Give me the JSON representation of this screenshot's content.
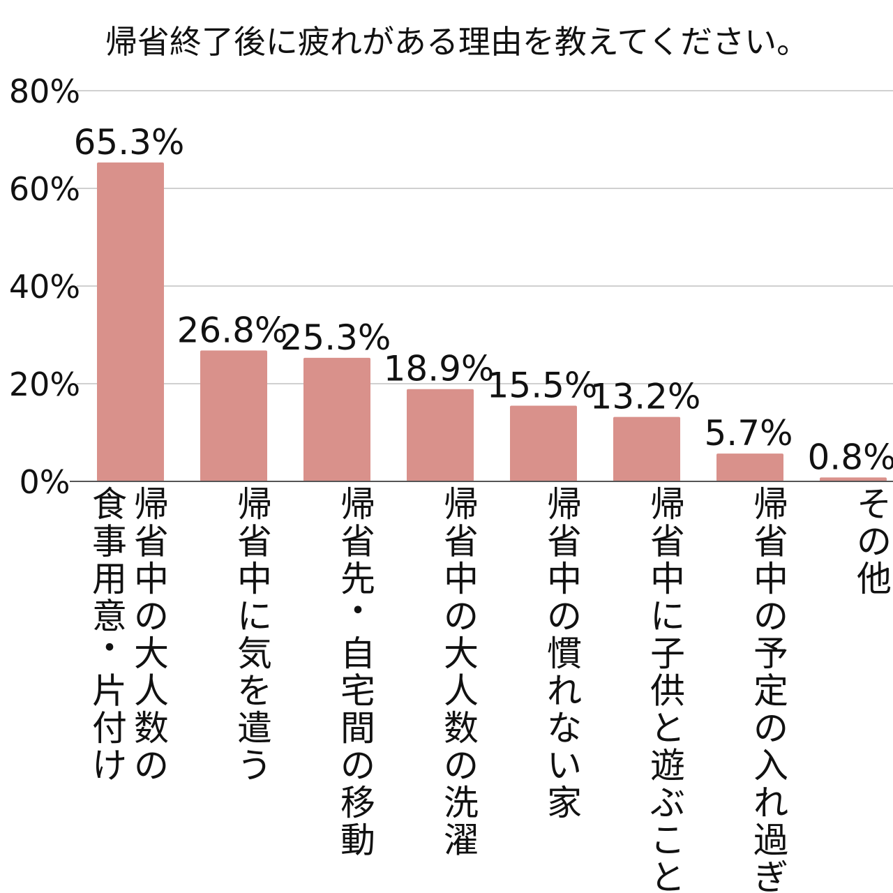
{
  "chart_data": {
    "type": "bar",
    "title": "帰省終了後に疲れがある理由を教えてください。",
    "xlabel": "",
    "ylabel": "",
    "ylim": [
      0,
      80
    ],
    "yticks": [
      "0%",
      "20%",
      "40%",
      "60%",
      "80%"
    ],
    "grid": true,
    "legend": "none",
    "bar_color": "#D9918B",
    "categories": [
      {
        "lines": [
          "帰省中の大人数の",
          "食事用意・片付け"
        ]
      },
      {
        "lines": [
          "帰省中に気を遣う"
        ]
      },
      {
        "lines": [
          "帰省先・自宅間の移動"
        ]
      },
      {
        "lines": [
          "帰省中の大人数の洗濯"
        ]
      },
      {
        "lines": [
          "帰省中の慣れない家"
        ]
      },
      {
        "lines": [
          "帰省中に子供と遊ぶこと"
        ]
      },
      {
        "lines": [
          "帰省中の予定の入れ過ぎ"
        ]
      },
      {
        "lines": [
          "その他"
        ]
      }
    ],
    "values": [
      65.3,
      26.8,
      25.3,
      18.9,
      15.5,
      13.2,
      5.7,
      0.8
    ],
    "data_labels": [
      "65.3%",
      "26.8%",
      "25.3%",
      "18.9%",
      "15.5%",
      "13.2%",
      "5.7%",
      "0.8%"
    ]
  }
}
